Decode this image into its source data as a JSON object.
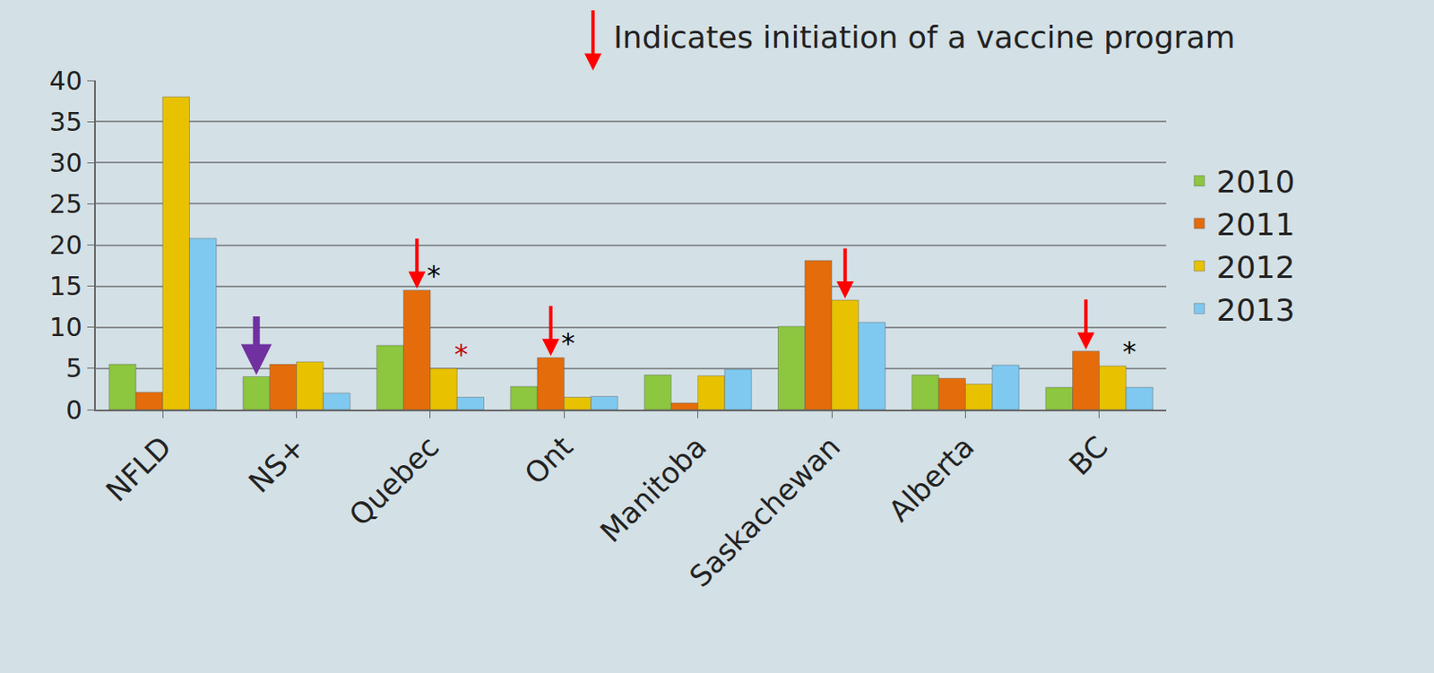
{
  "chart_data": {
    "type": "bar",
    "categories": [
      "NFLD",
      "NS+",
      "Quebec",
      "Ont",
      "Manitoba",
      "Saskachewan",
      "Alberta",
      "BC"
    ],
    "series": [
      {
        "name": "2010",
        "color": "#8dc63f",
        "values": [
          5.5,
          4.0,
          7.8,
          2.8,
          4.2,
          10.1,
          4.2,
          2.7
        ]
      },
      {
        "name": "2011",
        "color": "#e46c0a",
        "values": [
          2.1,
          5.5,
          14.5,
          6.3,
          0.8,
          18.1,
          3.8,
          7.1
        ]
      },
      {
        "name": "2012",
        "color": "#e8c200",
        "values": [
          38.0,
          5.8,
          5.0,
          1.5,
          4.1,
          13.3,
          3.1,
          5.3
        ]
      },
      {
        "name": "2013",
        "color": "#7fc9f0",
        "values": [
          20.8,
          2.0,
          1.5,
          1.6,
          4.9,
          10.6,
          5.4,
          2.7
        ]
      }
    ],
    "ylim": [
      0,
      40
    ],
    "yticks": [
      0,
      5,
      10,
      15,
      20,
      25,
      30,
      35,
      40
    ],
    "grid": true,
    "legend": "right",
    "annotations": [
      {
        "text": "Indicates initiation of a vaccine program",
        "color": "#ff0000"
      },
      {
        "text": "*",
        "category": "Quebec",
        "series": "2011",
        "color": "#000000"
      },
      {
        "text": "*",
        "category": "Quebec",
        "series": "2012",
        "color": "#c00000"
      },
      {
        "text": "*",
        "category": "Ont",
        "series": "2011",
        "color": "#000000"
      },
      {
        "text": "*",
        "category": "BC",
        "series": "2012",
        "color": "#000000"
      }
    ],
    "vaccine_programs": [
      {
        "category": "NS+",
        "series": "2010",
        "color": "#7030a0"
      },
      {
        "category": "Quebec",
        "series": "2011",
        "color": "#ff0000"
      },
      {
        "category": "Ont",
        "series": "2011",
        "color": "#ff0000"
      },
      {
        "category": "Saskachewan",
        "series": "2012",
        "color": "#ff0000"
      },
      {
        "category": "BC",
        "series": "2011",
        "color": "#ff0000"
      }
    ]
  }
}
